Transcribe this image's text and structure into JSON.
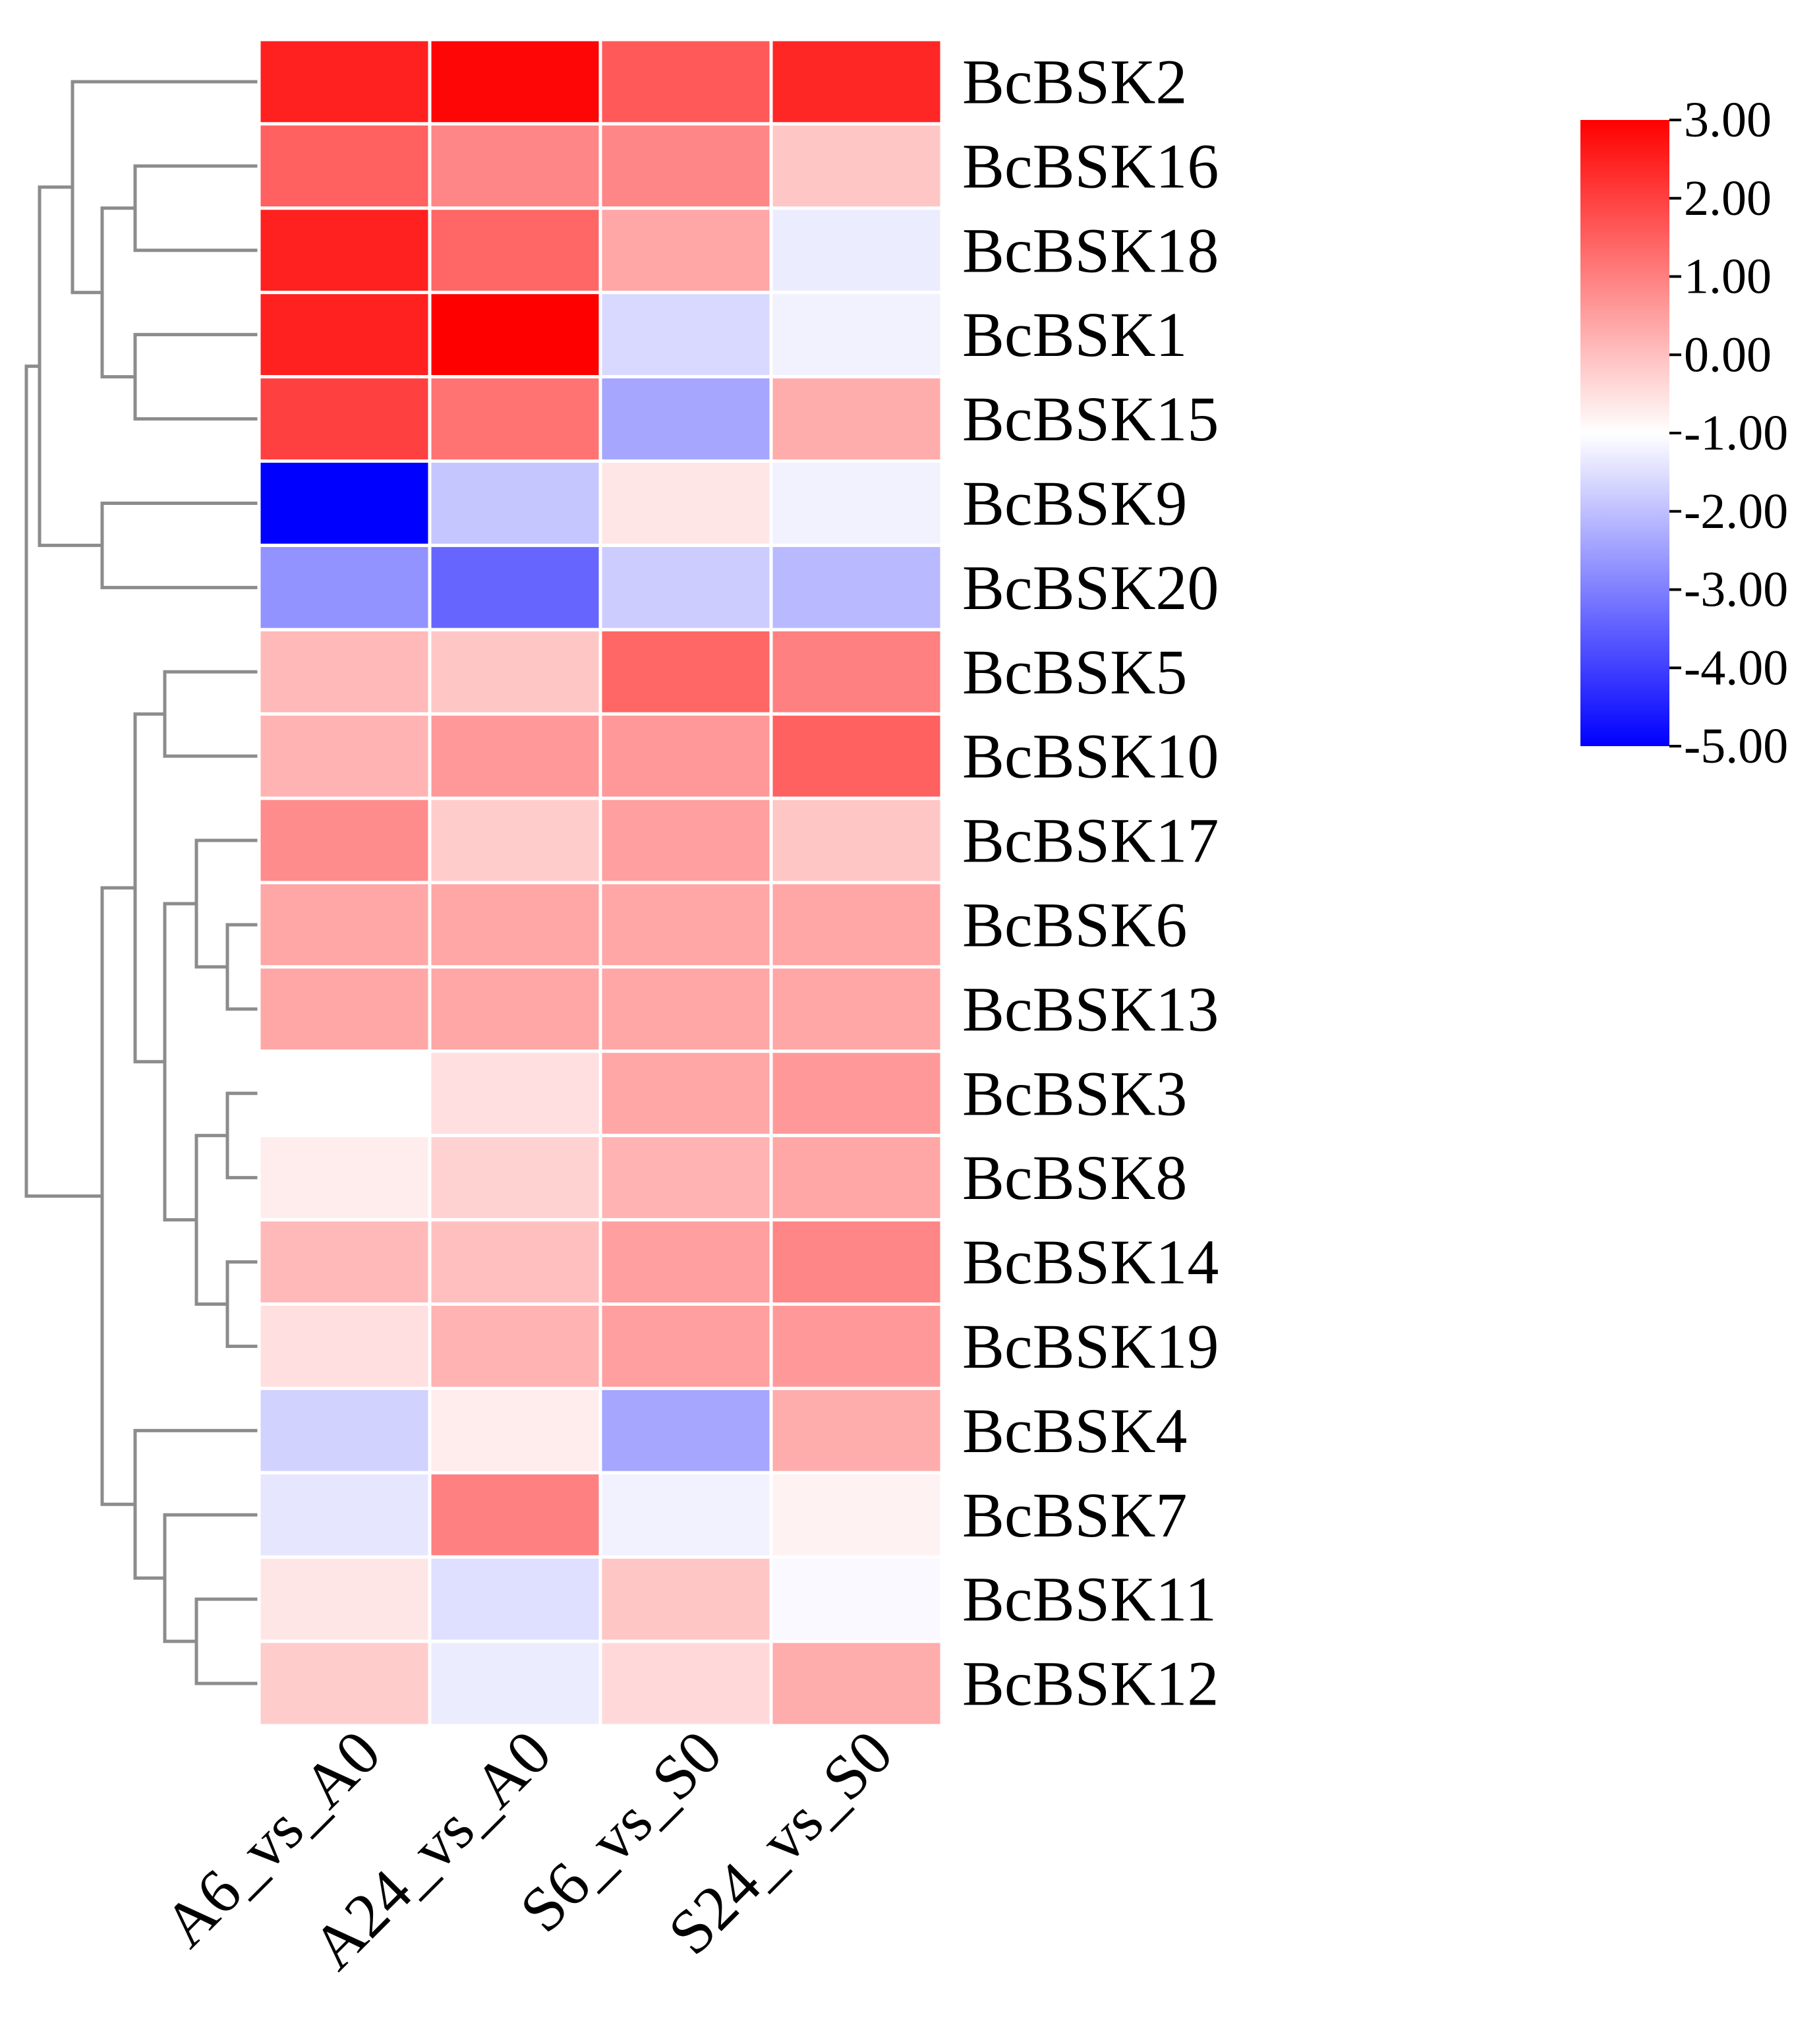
{
  "chart_data": {
    "type": "heatmap",
    "rows": [
      "BcBSK2",
      "BcBSK16",
      "BcBSK18",
      "BcBSK1",
      "BcBSK15",
      "BcBSK9",
      "BcBSK20",
      "BcBSK5",
      "BcBSK10",
      "BcBSK17",
      "BcBSK6",
      "BcBSK13",
      "BcBSK3",
      "BcBSK8",
      "BcBSK14",
      "BcBSK19",
      "BcBSK4",
      "BcBSK7",
      "BcBSK11",
      "BcBSK12"
    ],
    "columns": [
      "A6_vs_A0",
      "A24_vs_A0",
      "S6_vs_S0",
      "S24_vs_S0"
    ],
    "values": [
      [
        2.5,
        2.9,
        1.6,
        2.4
      ],
      [
        1.5,
        0.9,
        0.9,
        -0.1
      ],
      [
        2.5,
        1.4,
        0.4,
        -1.3
      ],
      [
        2.5,
        3.0,
        -1.6,
        -1.2
      ],
      [
        2.0,
        1.2,
        -2.4,
        0.3
      ],
      [
        -5.0,
        -1.9,
        -0.6,
        -1.2
      ],
      [
        -2.7,
        -3.4,
        -1.8,
        -2.1
      ],
      [
        0.1,
        -0.1,
        1.4,
        1.0
      ],
      [
        0.2,
        0.6,
        0.6,
        1.5
      ],
      [
        0.8,
        -0.2,
        0.5,
        -0.1
      ],
      [
        0.4,
        0.4,
        0.4,
        0.4
      ],
      [
        0.4,
        0.4,
        0.4,
        0.4
      ],
      [
        -1.0,
        -0.5,
        0.4,
        0.6
      ],
      [
        -0.7,
        -0.3,
        0.2,
        0.4
      ],
      [
        0.1,
        0.0,
        0.5,
        0.9
      ],
      [
        -0.5,
        0.2,
        0.5,
        0.6
      ],
      [
        -1.7,
        -0.7,
        -2.4,
        0.3
      ],
      [
        -1.4,
        1.0,
        -1.2,
        -0.8
      ],
      [
        -0.6,
        -1.5,
        -0.1,
        -1.1
      ],
      [
        -0.2,
        -1.3,
        -0.4,
        0.3
      ]
    ],
    "colorscale": {
      "min": -5.0,
      "mid": -1.0,
      "max": 3.0,
      "min_color": "#0000ff",
      "mid_color": "#ffffff",
      "max_color": "#ff0000",
      "ticks": [
        "3.00",
        "2.00",
        "1.00",
        "0.00",
        "-1.00",
        "-2.00",
        "-3.00",
        "-4.00",
        "-5.00"
      ]
    },
    "dendrogram_color": "#8c8c8c",
    "cell_border_color": "#ffffff"
  }
}
